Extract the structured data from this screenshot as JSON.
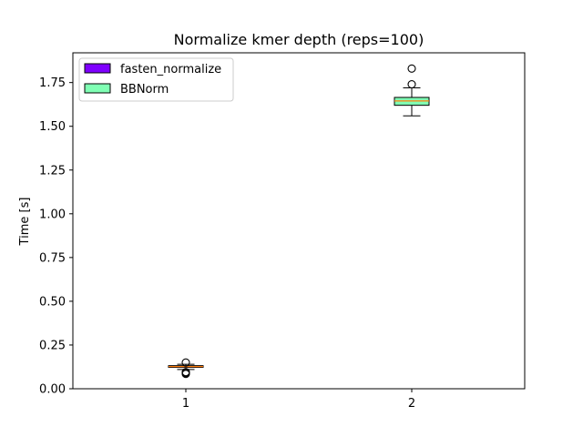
{
  "chart_data": {
    "type": "box",
    "title": "Normalize kmer depth (reps=100)",
    "xlabel": "",
    "ylabel": "Time [s]",
    "ylim": [
      0.0,
      1.92
    ],
    "xlim": [
      0.5,
      2.5
    ],
    "yticks": [
      0.0,
      0.25,
      0.5,
      0.75,
      1.0,
      1.25,
      1.5,
      1.75
    ],
    "ytick_labels": [
      "0.00",
      "0.25",
      "0.50",
      "0.75",
      "1.00",
      "1.25",
      "1.50",
      "1.75"
    ],
    "xticks": [
      1,
      2
    ],
    "xtick_labels": [
      "1",
      "2"
    ],
    "grid": false,
    "legend": "top-left",
    "median_color": "#ff7f0e",
    "series": [
      {
        "name": "fasten_normalize",
        "position": 1,
        "color": "#7f00ff",
        "whisker_low": 0.11,
        "q1": 0.122,
        "median": 0.127,
        "q3": 0.132,
        "whisker_high": 0.14,
        "outliers": [
          0.15,
          0.095,
          0.09,
          0.085
        ]
      },
      {
        "name": "BBNorm",
        "position": 2,
        "color": "#80ffb4",
        "whisker_low": 1.56,
        "q1": 1.62,
        "median": 1.645,
        "q3": 1.665,
        "whisker_high": 1.72,
        "outliers": [
          1.74,
          1.83
        ]
      }
    ]
  }
}
